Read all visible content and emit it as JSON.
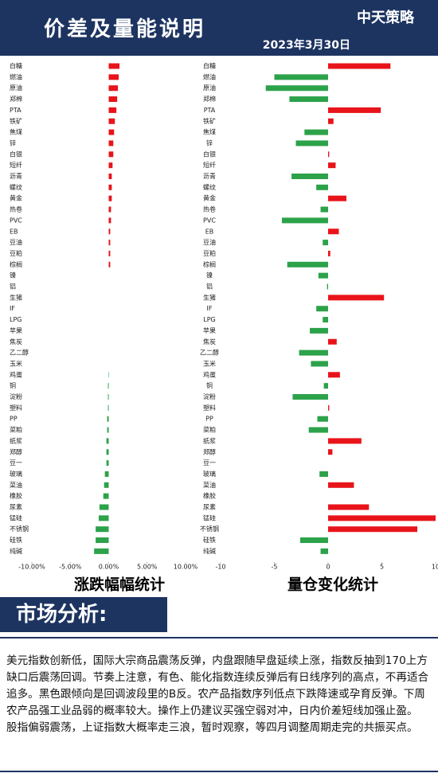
{
  "header": {
    "title": "价差及量能说明",
    "logo": "中天策略",
    "date": "2023年3月30日"
  },
  "chart_data": [
    {
      "type": "hbar",
      "title": "涨跌幅幅统计",
      "categories": [
        "白糖",
        "燃油",
        "原油",
        "郑棉",
        "PTA",
        "铁矿",
        "焦煤",
        "锌",
        "白银",
        "短纤",
        "沥青",
        "螺纹",
        "黄金",
        "热卷",
        "PVC",
        "EB",
        "豆油",
        "豆粕",
        "棕榈",
        "镍",
        "铝",
        "生猪",
        "IF",
        "LPG",
        "苹果",
        "焦炭",
        "乙二醇",
        "玉米",
        "鸡蛋",
        "铜",
        "淀粉",
        "塑料",
        "PP",
        "菜粕",
        "纸浆",
        "郑醇",
        "豆一",
        "玻璃",
        "菜油",
        "橡胶",
        "尿素",
        "锰硅",
        "不锈钢",
        "硅铁",
        "纯碱"
      ],
      "values": [
        1.4,
        1.3,
        1.2,
        1.1,
        1.0,
        0.8,
        0.7,
        0.6,
        0.6,
        0.5,
        0.4,
        0.4,
        0.4,
        0.3,
        0.3,
        0.2,
        0.2,
        0.2,
        0.2,
        0,
        0,
        0,
        0,
        0,
        0,
        0,
        0,
        0,
        -0.05,
        -0.1,
        -0.1,
        -0.1,
        -0.2,
        -0.2,
        -0.3,
        -0.3,
        -0.3,
        -0.5,
        -0.6,
        -0.7,
        -1.2,
        -1.3,
        -1.7,
        -1.7,
        -1.9
      ],
      "xlim": [
        -10,
        10
      ],
      "xticks": [
        {
          "value": -10,
          "label": "-10.00%"
        },
        {
          "value": -5,
          "label": "-5.00%"
        },
        {
          "value": 0,
          "label": "0.00%"
        },
        {
          "value": 5,
          "label": "5.00%"
        },
        {
          "value": 10,
          "label": "10.00%"
        }
      ],
      "positive_color": "#e8141a",
      "negative_color": "#2ca24a"
    },
    {
      "type": "hbar",
      "title": "量仓变化统计",
      "categories": [
        "白糖",
        "燃油",
        "原油",
        "郑棉",
        "PTA",
        "铁矿",
        "焦煤",
        "锌",
        "白银",
        "短纤",
        "沥青",
        "螺纹",
        "黄金",
        "热卷",
        "PVC",
        "EB",
        "豆油",
        "豆粕",
        "棕榈",
        "镍",
        "铝",
        "生猪",
        "IF",
        "LPG",
        "苹果",
        "焦炭",
        "乙二醇",
        "玉米",
        "鸡蛋",
        "铜",
        "淀粉",
        "塑料",
        "PP",
        "菜粕",
        "纸浆",
        "郑醇",
        "豆一",
        "玻璃",
        "菜油",
        "橡胶",
        "尿素",
        "锰硅",
        "不锈钢",
        "硅铁",
        "纯碱"
      ],
      "values": [
        5.8,
        -5.0,
        -5.8,
        -3.6,
        4.9,
        0.5,
        -2.2,
        -3.0,
        0.1,
        0.7,
        -3.4,
        -1.1,
        1.7,
        -0.7,
        -4.3,
        1.0,
        -0.5,
        0.2,
        -3.8,
        -0.9,
        -0.1,
        5.2,
        -1.1,
        -0.5,
        -1.7,
        0.8,
        -2.7,
        -1.6,
        1.1,
        -0.4,
        -3.3,
        0.1,
        -1.0,
        -1.8,
        3.1,
        0.4,
        0,
        -0.8,
        2.4,
        0,
        3.8,
        10,
        8.3,
        -2.6,
        -0.7
      ],
      "xlim": [
        -10,
        10
      ],
      "xticks": [
        -10,
        -5,
        0,
        5,
        10
      ],
      "positive_color": "#e8141a",
      "negative_color": "#2ca24a"
    }
  ],
  "analysis": {
    "heading": "市场分析:",
    "paragraphs": [
      "美元指数创新低，国际大宗商品震荡反弹，内盘跟随早盘延续上涨，指数反抽到170上方缺口后震荡回调。节奏上注意，有色、能化指数连续反弹后有日线序列的高点，不再适合追多。黑色跟倾向是回调波段里的B反。农产品指数序列低点下跌降速或孕育反弹。下周农产品强工业品弱的概率较大。操作上仍建议买强空弱对冲，日内价差短线加强止盈。",
      "股指偏弱震荡，上证指数大概率走三浪，暂时观察，等四月调整周期走完的共振买点。"
    ]
  }
}
